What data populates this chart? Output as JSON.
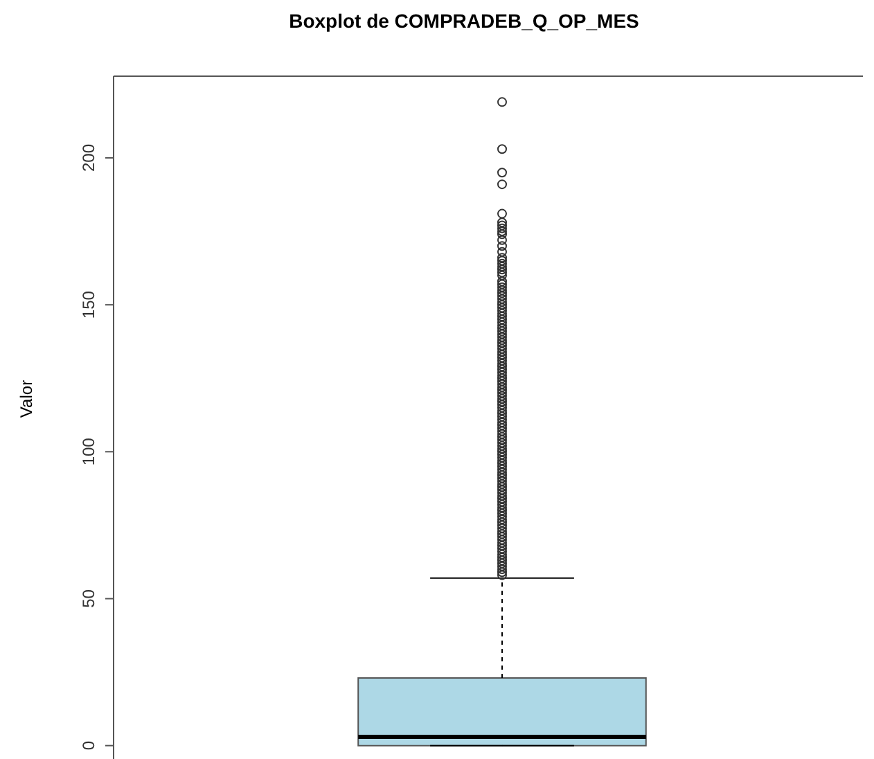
{
  "chart_data": {
    "type": "box",
    "title": "Boxplot de COMPRADEB_Q_OP_MES",
    "ylabel": "Valor",
    "categories": [
      null
    ],
    "color": "#add8e6",
    "boxes": [
      {
        "low": 0,
        "q1": 0,
        "median": 3,
        "q3": 23,
        "high": 57,
        "outliers": [
          58,
          59,
          60,
          61,
          62,
          63,
          64,
          65,
          66,
          67,
          68,
          69,
          70,
          71,
          72,
          73,
          74,
          75,
          76,
          77,
          78,
          79,
          80,
          81,
          82,
          83,
          84,
          85,
          86,
          87,
          88,
          89,
          90,
          91,
          92,
          93,
          94,
          95,
          96,
          97,
          98,
          99,
          100,
          101,
          102,
          103,
          104,
          105,
          106,
          107,
          108,
          109,
          110,
          111,
          112,
          113,
          114,
          115,
          116,
          117,
          118,
          119,
          120,
          121,
          122,
          123,
          124,
          125,
          126,
          127,
          128,
          129,
          130,
          131,
          132,
          133,
          134,
          135,
          136,
          137,
          138,
          139,
          140,
          141,
          142,
          143,
          144,
          145,
          146,
          147,
          148,
          149,
          150,
          151,
          152,
          153,
          154,
          155,
          156,
          157,
          158,
          160,
          161,
          162,
          163,
          164,
          165,
          166,
          168,
          170,
          172,
          174,
          175,
          176,
          177,
          178,
          181,
          191,
          195,
          203,
          219
        ]
      }
    ],
    "ylim": [
      -8.8,
      227.8
    ],
    "yticks": [
      0,
      50,
      100,
      150,
      200
    ],
    "tick_labels": "y",
    "marker": "circle"
  }
}
